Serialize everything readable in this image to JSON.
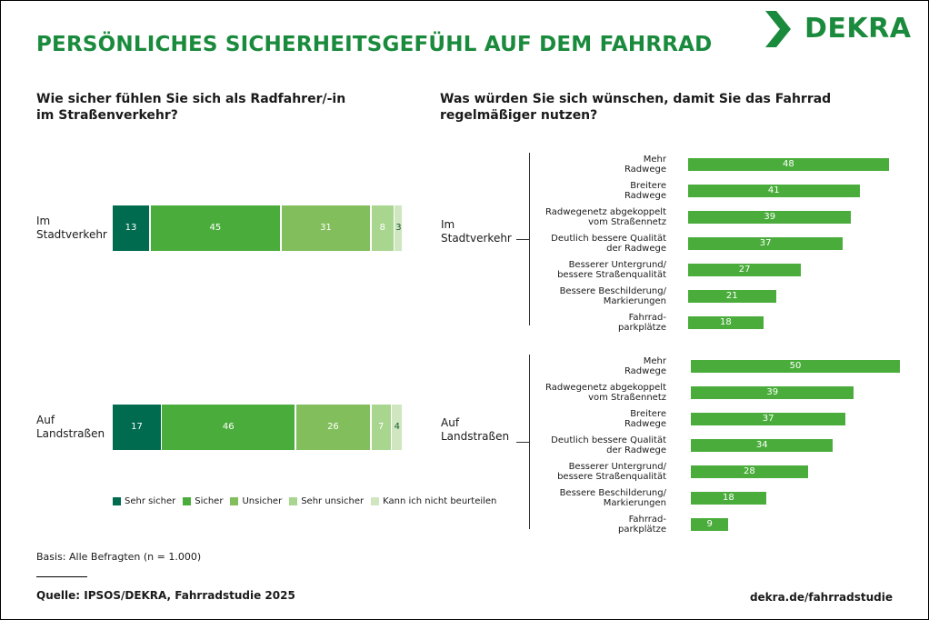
{
  "title": "PERSÖNLICHES SICHERHEITSGEFÜHL AUF DEM FAHRRAD",
  "logo_text": "DEKRA",
  "basis": "Basis: Alle Befragten (n = 1.000)",
  "source": "Quelle: IPSOS/DEKRA, Fahrradstudie 2025",
  "url": "dekra.de/fahrradstudie",
  "colors": [
    "#006b4f",
    "#4aad3b",
    "#82bf5c",
    "#a9d68f",
    "#cfe6c1"
  ],
  "bar_color": "#4aad3b",
  "chart_data": [
    {
      "type": "bar",
      "stacked": true,
      "orientation": "horizontal",
      "title": "Wie sicher fühlen Sie sich als Radfahrer/-in\nim Straßenverkehr?",
      "categories": [
        "Im\nStadtverkehr",
        "Auf\nLandstraßen"
      ],
      "series": [
        {
          "name": "Sehr sicher",
          "values": [
            13,
            17
          ]
        },
        {
          "name": "Sicher",
          "values": [
            45,
            46
          ]
        },
        {
          "name": "Unsicher",
          "values": [
            31,
            26
          ]
        },
        {
          "name": "Sehr unsicher",
          "values": [
            8,
            7
          ]
        },
        {
          "name": "Kann ich nicht beurteilen",
          "values": [
            3,
            4
          ]
        }
      ],
      "legend": "bottom"
    },
    {
      "type": "bar",
      "orientation": "horizontal",
      "title": "Was würden Sie sich wünschen, damit Sie das Fahrrad\nregelmäßiger nutzen?",
      "groups": [
        {
          "name": "Im\nStadtverkehr",
          "categories": [
            "Mehr\nRadwege",
            "Breitere\nRadwege",
            "Radwegenetz abgekoppelt\nvom Straßennetz",
            "Deutlich bessere Qualität\nder Radwege",
            "Besserer Untergrund/\nbessere Straßenqualität",
            "Bessere Beschilderung/\nMarkierungen",
            "Fahrrad-\nparkplätze"
          ],
          "values": [
            48,
            41,
            39,
            37,
            27,
            21,
            18
          ]
        },
        {
          "name": "Auf\nLandstraßen",
          "categories": [
            "Mehr\nRadwege",
            "Radwegenetz abgekoppelt\nvom Straßennetz",
            "Breitere\nRadwege",
            "Deutlich bessere Qualität\nder Radwege",
            "Besserer Untergrund/\nbessere Straßenqualität",
            "Bessere Beschilderung/\nMarkierungen",
            "Fahrrad-\nparkplätze"
          ],
          "values": [
            50,
            39,
            37,
            34,
            28,
            18,
            9
          ]
        }
      ]
    }
  ]
}
